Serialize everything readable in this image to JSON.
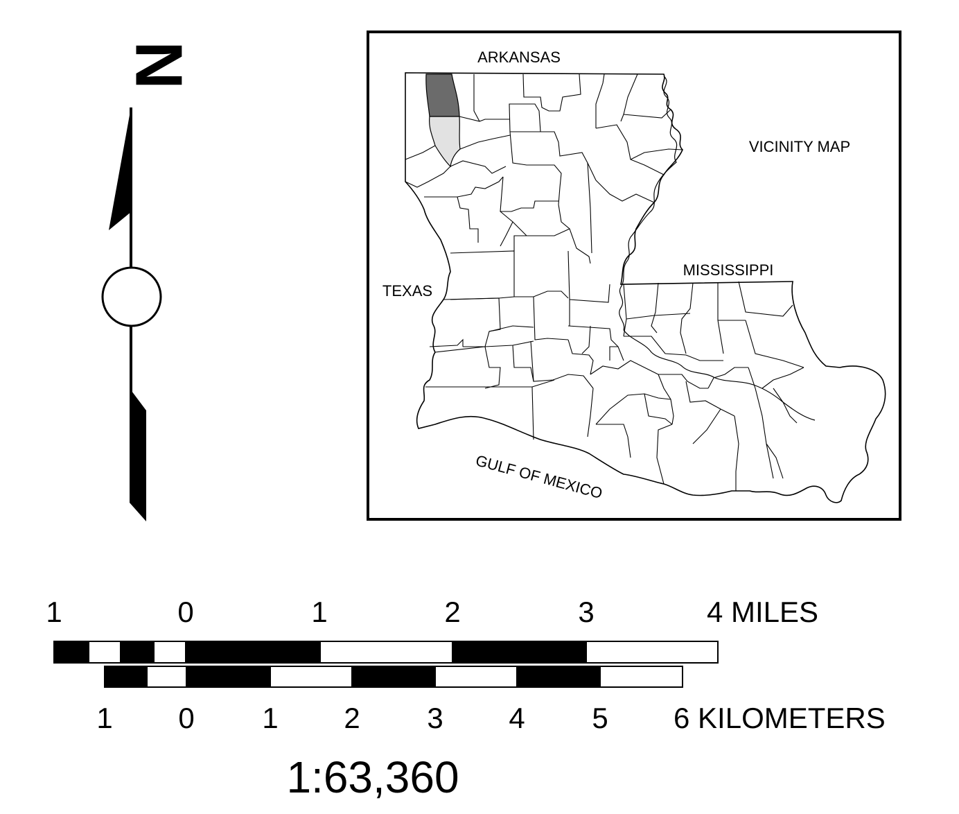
{
  "north_arrow": {
    "letter": "N"
  },
  "vicinity_map": {
    "title": "VICINITY MAP",
    "labels": {
      "north_neighbor": "ARKANSAS",
      "west_neighbor": "TEXAS",
      "east_neighbor": "MISSISSIPPI",
      "south_water": "GULF OF MEXICO"
    },
    "colors": {
      "highlight_primary": "#6b6b6b",
      "highlight_secondary": "#e2e2e2",
      "outline": "#000000"
    }
  },
  "scale_bar": {
    "miles": {
      "ticks": [
        "1",
        "0",
        "1",
        "2",
        "3"
      ],
      "end_label": "4 MILES"
    },
    "kilometers": {
      "ticks": [
        "1",
        "0",
        "1",
        "2",
        "3",
        "4",
        "5"
      ],
      "end_label": "6 KILOMETERS"
    },
    "ratio": "1:63,360"
  }
}
